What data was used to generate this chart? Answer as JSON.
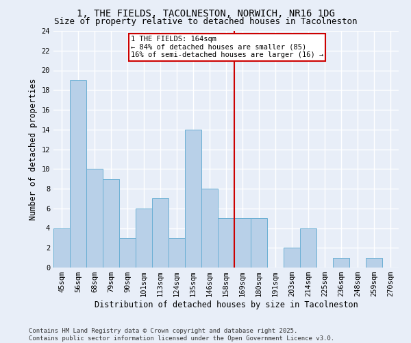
{
  "title_line1": "1, THE FIELDS, TACOLNESTON, NORWICH, NR16 1DG",
  "title_line2": "Size of property relative to detached houses in Tacolneston",
  "xlabel": "Distribution of detached houses by size in Tacolneston",
  "ylabel": "Number of detached properties",
  "categories": [
    "45sqm",
    "56sqm",
    "68sqm",
    "79sqm",
    "90sqm",
    "101sqm",
    "113sqm",
    "124sqm",
    "135sqm",
    "146sqm",
    "158sqm",
    "169sqm",
    "180sqm",
    "191sqm",
    "203sqm",
    "214sqm",
    "225sqm",
    "236sqm",
    "248sqm",
    "259sqm",
    "270sqm"
  ],
  "values": [
    4,
    19,
    10,
    9,
    3,
    6,
    7,
    3,
    14,
    8,
    5,
    5,
    5,
    0,
    2,
    4,
    0,
    1,
    0,
    1,
    0
  ],
  "bar_color": "#b8d0e8",
  "bar_edge_color": "#6aafd4",
  "background_color": "#e8eef8",
  "grid_color": "#ffffff",
  "annotation_text_line1": "1 THE FIELDS: 164sqm",
  "annotation_text_line2": "← 84% of detached houses are smaller (85)",
  "annotation_text_line3": "16% of semi-detached houses are larger (16) →",
  "annotation_box_color": "#ffffff",
  "annotation_box_edge_color": "#cc0000",
  "vline_color": "#cc0000",
  "vline_x": 10.5,
  "ylim": [
    0,
    24
  ],
  "yticks": [
    0,
    2,
    4,
    6,
    8,
    10,
    12,
    14,
    16,
    18,
    20,
    22,
    24
  ],
  "footer_text": "Contains HM Land Registry data © Crown copyright and database right 2025.\nContains public sector information licensed under the Open Government Licence v3.0.",
  "title_fontsize": 10,
  "subtitle_fontsize": 9,
  "axis_label_fontsize": 8.5,
  "tick_fontsize": 7.5,
  "annotation_fontsize": 7.5,
  "footer_fontsize": 6.5
}
